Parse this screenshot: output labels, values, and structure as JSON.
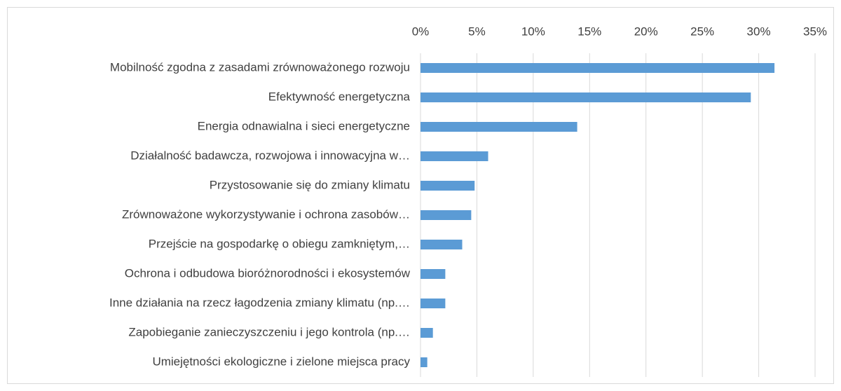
{
  "chart_data": {
    "type": "barh",
    "categories": [
      "Mobilność zgodna z zasadami zrównoważonego rozwoju",
      "Efektywność energetyczna",
      "Energia odnawialna i sieci energetyczne",
      "Działalność badawcza, rozwojowa i innowacyjna w…",
      "Przystosowanie się do zmiany klimatu",
      "Zrównoważone wykorzystywanie i ochrona zasobów…",
      "Przejście na gospodarkę o obiegu zamkniętym,…",
      "Ochrona i odbudowa bioróżnorodności i ekosystemów",
      "Inne działania na rzecz łagodzenia zmiany klimatu (np.…",
      "Zapobieganie zanieczyszczeniu i jego kontrola (np.…",
      "Umiejętności ekologiczne i zielone miejsca pracy"
    ],
    "values": [
      31.4,
      29.3,
      13.9,
      6.0,
      4.8,
      4.5,
      3.7,
      2.2,
      2.2,
      1.1,
      0.6
    ],
    "color": "#5b9bd5",
    "xlim": [
      0,
      35
    ],
    "xticks": [
      {
        "value": 0,
        "label": "0%"
      },
      {
        "value": 5,
        "label": "5%"
      },
      {
        "value": 10,
        "label": "10%"
      },
      {
        "value": 15,
        "label": "15%"
      },
      {
        "value": 20,
        "label": "20%"
      },
      {
        "value": 25,
        "label": "25%"
      },
      {
        "value": 30,
        "label": "30%"
      },
      {
        "value": 35,
        "label": "35%"
      }
    ],
    "grid": true
  }
}
